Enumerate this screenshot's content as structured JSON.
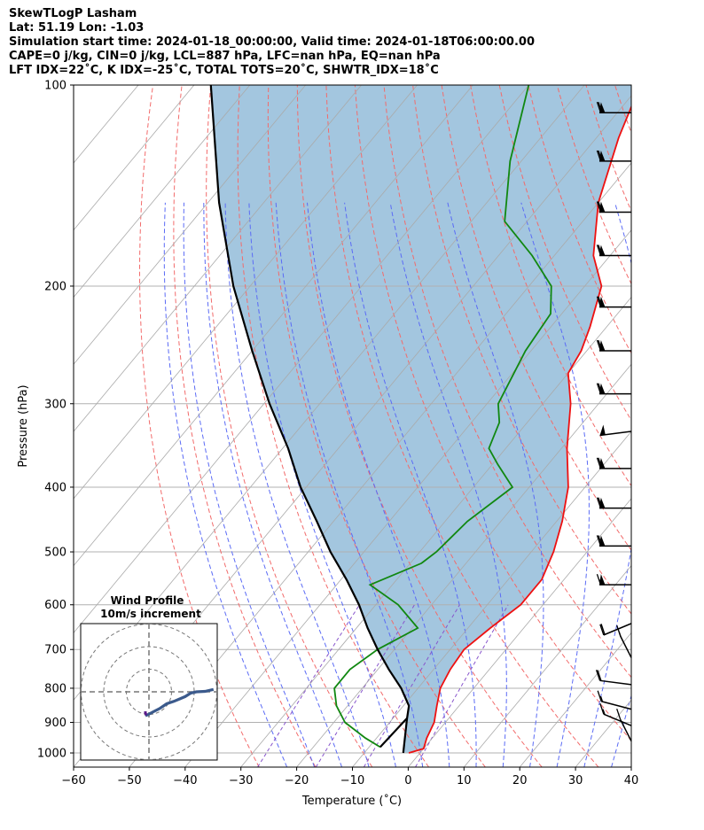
{
  "header": {
    "line1": "SkewTLogP Lasham",
    "line2": "Lat: 51.19   Lon: -1.03",
    "line3": "Simulation start time: 2024-01-18_00:00:00, Valid time: 2024-01-18T06:00:00.00",
    "line4": "CAPE=0 j/kg, CIN=0 j/kg, LCL=887 hPa, LFC=nan hPa, EQ=nan hPa",
    "line5": "LFT IDX=22˚C, K IDX=-25˚C, TOTAL TOTS=20˚C, SHWTR_IDX=18˚C"
  },
  "colors": {
    "temperature": "#ee1111",
    "dewpoint": "#118811",
    "parcel": "#000000",
    "fill": "#a3c6df",
    "dry_adiabat": "#f26b6b",
    "moist_adiabat": "#5b6bf5",
    "mixing_ratio": "#8855cc",
    "isotherm": "#aaaaaa",
    "grid": "#b0b0b0"
  },
  "chart_data": [
    {
      "type": "line",
      "title": "",
      "xlabel": "Temperature (˚C)",
      "ylabel": "Pressure (hPa)",
      "xlim": [
        -60,
        40
      ],
      "ylim": [
        1050,
        100
      ],
      "y_scale": "log",
      "x_ticks": [
        "−60",
        "−50",
        "−40",
        "−30",
        "−20",
        "−10",
        "0",
        "10",
        "20",
        "30",
        "40"
      ],
      "y_ticks": [
        "100",
        "200",
        "300",
        "400",
        "500",
        "600",
        "700",
        "800",
        "900",
        "1000"
      ],
      "grid": true,
      "skew": true,
      "series": [
        {
          "role": "temperature",
          "points": [
            [
              -2,
              1000
            ],
            [
              0,
              985
            ],
            [
              -1,
              950
            ],
            [
              -2,
              900
            ],
            [
              -4,
              850
            ],
            [
              -6,
              800
            ],
            [
              -7,
              750
            ],
            [
              -7.5,
              700
            ],
            [
              -6,
              650
            ],
            [
              -4,
              600
            ],
            [
              -4,
              550
            ],
            [
              -6,
              500
            ],
            [
              -9,
              450
            ],
            [
              -13,
              400
            ],
            [
              -19,
              350
            ],
            [
              -25,
              300
            ],
            [
              -30,
              270
            ],
            [
              -31,
              250
            ],
            [
              -33,
              230
            ],
            [
              -37,
              200
            ],
            [
              -43,
              180
            ],
            [
              -50,
              150
            ],
            [
              -56,
              120
            ],
            [
              -60,
              100
            ]
          ]
        },
        {
          "role": "dewpoint",
          "points": [
            [
              -8,
              980
            ],
            [
              -12,
              950
            ],
            [
              -18,
              900
            ],
            [
              -22,
              850
            ],
            [
              -25,
              800
            ],
            [
              -25,
              750
            ],
            [
              -23,
              700
            ],
            [
              -19,
              650
            ],
            [
              -26,
              600
            ],
            [
              -34,
              560
            ],
            [
              -28,
              520
            ],
            [
              -27,
              500
            ],
            [
              -26,
              450
            ],
            [
              -23,
              400
            ],
            [
              -29,
              370
            ],
            [
              -33,
              350
            ],
            [
              -35,
              320
            ],
            [
              -38,
              300
            ],
            [
              -41,
              250
            ],
            [
              -42,
              220
            ],
            [
              -46,
              200
            ],
            [
              -54,
              180
            ],
            [
              -64,
              160
            ],
            [
              -72,
              130
            ],
            [
              -80,
              100
            ]
          ]
        },
        {
          "role": "parcel",
          "points": [
            [
              -3,
              1000
            ],
            [
              -7.5,
              887
            ],
            [
              -9,
              850
            ],
            [
              -13,
              800
            ],
            [
              -18,
              750
            ],
            [
              -23,
              700
            ],
            [
              -28,
              650
            ],
            [
              -33,
              600
            ],
            [
              -39,
              550
            ],
            [
              -46,
              500
            ],
            [
              -53,
              450
            ],
            [
              -61,
              400
            ],
            [
              -69,
              350
            ],
            [
              -79,
              300
            ],
            [
              -90,
              250
            ],
            [
              -103,
              200
            ],
            [
              -118,
              150
            ],
            [
              -137,
              100
            ]
          ]
        },
        {
          "role": "lcl_segment",
          "points": [
            [
              -8,
              980
            ],
            [
              -7.5,
              887
            ]
          ]
        }
      ],
      "wind_barbs": [
        {
          "p": 110,
          "speed": 70,
          "dir": 270
        },
        {
          "p": 130,
          "speed": 70,
          "dir": 270
        },
        {
          "p": 155,
          "speed": 70,
          "dir": 270
        },
        {
          "p": 180,
          "speed": 70,
          "dir": 270
        },
        {
          "p": 215,
          "speed": 70,
          "dir": 270
        },
        {
          "p": 250,
          "speed": 70,
          "dir": 270
        },
        {
          "p": 290,
          "speed": 70,
          "dir": 270
        },
        {
          "p": 330,
          "speed": 50,
          "dir": 280
        },
        {
          "p": 375,
          "speed": 70,
          "dir": 270
        },
        {
          "p": 430,
          "speed": 70,
          "dir": 270
        },
        {
          "p": 490,
          "speed": 70,
          "dir": 270
        },
        {
          "p": 560,
          "speed": 65,
          "dir": 270
        },
        {
          "p": 640,
          "speed": 20,
          "dir": 300
        },
        {
          "p": 720,
          "speed": 15,
          "dir": 200
        },
        {
          "p": 790,
          "speed": 20,
          "dir": 260
        },
        {
          "p": 860,
          "speed": 15,
          "dir": 250
        },
        {
          "p": 910,
          "speed": 15,
          "dir": 240
        },
        {
          "p": 960,
          "speed": 10,
          "dir": 200
        }
      ]
    },
    {
      "type": "line",
      "title": "Wind Profile",
      "subtitle": "10m/s increment",
      "rings": [
        10,
        20,
        30
      ],
      "points": [
        [
          0,
          0
        ],
        [
          2,
          0.5
        ],
        [
          5,
          1.5
        ],
        [
          10,
          3
        ],
        [
          15,
          5
        ],
        [
          20,
          6
        ],
        [
          24,
          7
        ],
        [
          28,
          8
        ],
        [
          32,
          9.5
        ],
        [
          36,
          10
        ],
        [
          42,
          10.2
        ],
        [
          48,
          11
        ]
      ],
      "low_level": [
        [
          0,
          0
        ],
        [
          0,
          -1
        ],
        [
          0.5,
          -2.2
        ]
      ]
    }
  ]
}
